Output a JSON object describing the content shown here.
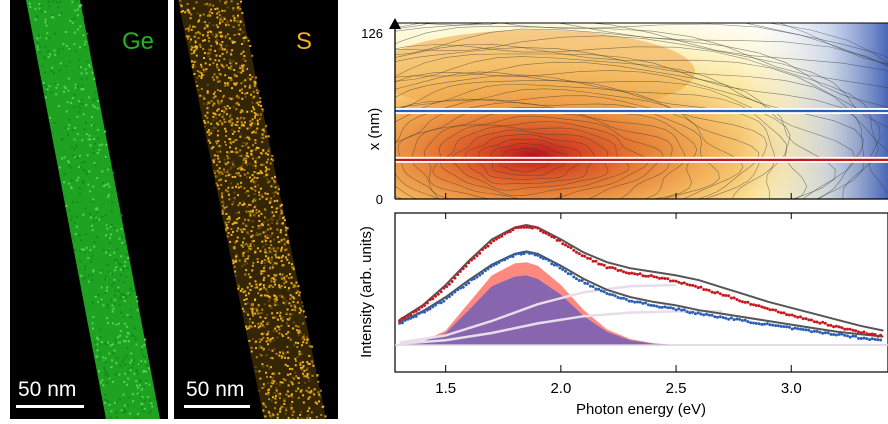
{
  "maps": [
    {
      "element": "Ge",
      "color": "#22b326",
      "scalebar_label": "50 nm"
    },
    {
      "element": "S",
      "color": "#f0b21d",
      "scalebar_label": "50 nm"
    }
  ],
  "colors": {
    "red": "#c8181e",
    "blue": "#2a5fb8",
    "dark": "#555555",
    "fill_red": "#ff7b73",
    "fill_purple": "#7a62b4",
    "light": "#e7dcea"
  },
  "chart_data": [
    {
      "type": "heatmap",
      "ylabel": "x (nm)",
      "y_ticks": [
        "0",
        "126"
      ],
      "ylim": [
        0,
        126
      ],
      "xlim": [
        1.28,
        3.42
      ],
      "cut_lines": [
        {
          "y": 63,
          "color": "blue"
        },
        {
          "y": 28,
          "color": "red"
        }
      ]
    },
    {
      "type": "line",
      "xlabel": "Photon energy (eV)",
      "ylabel": "Intensity (arb. units)",
      "xlim": [
        1.28,
        3.42
      ],
      "x_ticks": [
        "1.5",
        "2.0",
        "2.5",
        "3.0"
      ],
      "x_tick_values": [
        1.5,
        2.0,
        2.5,
        3.0
      ],
      "ylim": [
        0,
        1.1
      ],
      "series": [
        {
          "color": "red",
          "x": [
            1.3,
            1.4,
            1.5,
            1.6,
            1.7,
            1.8,
            1.85,
            1.9,
            2.0,
            2.1,
            2.2,
            2.3,
            2.4,
            2.5,
            2.6,
            2.7,
            2.8,
            2.9,
            3.0,
            3.1,
            3.2,
            3.3,
            3.4
          ],
          "y": [
            0.2,
            0.32,
            0.48,
            0.68,
            0.86,
            0.97,
            0.99,
            0.97,
            0.86,
            0.74,
            0.65,
            0.6,
            0.57,
            0.53,
            0.48,
            0.42,
            0.36,
            0.3,
            0.25,
            0.2,
            0.15,
            0.11,
            0.07
          ]
        },
        {
          "color": "blue",
          "x": [
            1.3,
            1.4,
            1.5,
            1.6,
            1.7,
            1.8,
            1.85,
            1.9,
            2.0,
            2.1,
            2.2,
            2.3,
            2.4,
            2.5,
            2.6,
            2.7,
            2.8,
            2.9,
            3.0,
            3.1,
            3.2,
            3.3,
            3.4
          ],
          "y": [
            0.18,
            0.27,
            0.38,
            0.52,
            0.66,
            0.75,
            0.77,
            0.75,
            0.64,
            0.52,
            0.43,
            0.37,
            0.33,
            0.3,
            0.26,
            0.23,
            0.2,
            0.17,
            0.14,
            0.11,
            0.09,
            0.06,
            0.04
          ]
        },
        {
          "color": "dark",
          "x": [
            1.3,
            1.4,
            1.5,
            1.6,
            1.7,
            1.8,
            1.85,
            1.9,
            2.0,
            2.1,
            2.2,
            2.3,
            2.4,
            2.5,
            2.6,
            2.7,
            2.8,
            2.9,
            3.0,
            3.1,
            3.2,
            3.3,
            3.4
          ],
          "y": [
            0.21,
            0.33,
            0.5,
            0.7,
            0.88,
            0.98,
            1.0,
            0.98,
            0.88,
            0.77,
            0.69,
            0.64,
            0.61,
            0.58,
            0.54,
            0.48,
            0.42,
            0.36,
            0.31,
            0.26,
            0.21,
            0.16,
            0.12
          ]
        },
        {
          "color": "dark",
          "x": [
            1.3,
            1.4,
            1.5,
            1.6,
            1.7,
            1.8,
            1.85,
            1.9,
            2.0,
            2.1,
            2.2,
            2.3,
            2.4,
            2.5,
            2.6,
            2.7,
            2.8,
            2.9,
            3.0,
            3.1,
            3.2,
            3.3,
            3.4
          ],
          "y": [
            0.19,
            0.28,
            0.4,
            0.54,
            0.67,
            0.76,
            0.78,
            0.76,
            0.66,
            0.55,
            0.46,
            0.4,
            0.36,
            0.33,
            0.29,
            0.26,
            0.23,
            0.2,
            0.17,
            0.14,
            0.11,
            0.09,
            0.07
          ]
        }
      ],
      "areas": [
        {
          "color": "fill_red",
          "x": [
            1.3,
            1.4,
            1.5,
            1.6,
            1.7,
            1.8,
            1.85,
            1.9,
            2.0,
            2.1,
            2.2,
            2.3,
            2.4,
            2.5
          ],
          "y": [
            0.005,
            0.03,
            0.12,
            0.35,
            0.58,
            0.68,
            0.69,
            0.66,
            0.5,
            0.29,
            0.13,
            0.05,
            0.015,
            0.0
          ]
        },
        {
          "color": "fill_purple",
          "x": [
            1.3,
            1.4,
            1.5,
            1.6,
            1.7,
            1.8,
            1.85,
            1.9,
            2.0,
            2.1,
            2.2,
            2.3,
            2.4,
            2.5
          ],
          "y": [
            0.004,
            0.025,
            0.1,
            0.29,
            0.49,
            0.57,
            0.58,
            0.55,
            0.42,
            0.24,
            0.11,
            0.04,
            0.012,
            0.0
          ]
        }
      ],
      "background_curves": [
        {
          "color": "light",
          "x": [
            1.3,
            1.5,
            1.7,
            1.9,
            2.1,
            2.3,
            2.5
          ],
          "y": [
            0.02,
            0.08,
            0.2,
            0.34,
            0.44,
            0.49,
            0.5
          ]
        },
        {
          "color": "light",
          "x": [
            1.3,
            1.5,
            1.7,
            1.9,
            2.1,
            2.3,
            2.5,
            2.7
          ],
          "y": [
            0.01,
            0.04,
            0.1,
            0.18,
            0.24,
            0.27,
            0.28,
            0.28
          ]
        }
      ]
    }
  ]
}
